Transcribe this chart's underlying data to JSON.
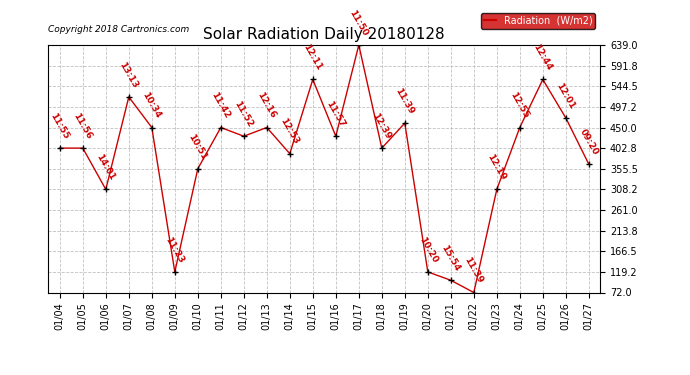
{
  "title": "Solar Radiation Daily 20180128",
  "copyright": "Copyright 2018 Cartronics.com",
  "legend_label": "Radiation  (W/m2)",
  "x_labels": [
    "01/04",
    "01/05",
    "01/06",
    "01/07",
    "01/08",
    "01/09",
    "01/10",
    "01/11",
    "01/12",
    "01/13",
    "01/14",
    "01/15",
    "01/16",
    "01/17",
    "01/18",
    "01/19",
    "01/20",
    "01/21",
    "01/22",
    "01/23",
    "01/24",
    "01/25",
    "01/26",
    "01/27"
  ],
  "y_values": [
    402.8,
    402.8,
    308.2,
    520.0,
    450.0,
    119.2,
    355.5,
    450.0,
    430.0,
    450.0,
    390.0,
    560.0,
    430.0,
    639.0,
    402.8,
    460.0,
    119.2,
    100.0,
    72.0,
    308.2,
    450.0,
    560.0,
    472.0,
    366.0
  ],
  "time_labels": [
    "11:55",
    "11:56",
    "14:01",
    "13:13",
    "10:34",
    "11:23",
    "10:51",
    "11:42",
    "11:52",
    "12:16",
    "12:53",
    "12:11",
    "11:57",
    "11:50",
    "12:39",
    "11:39",
    "10:20",
    "15:54",
    "11:39",
    "12:19",
    "12:55",
    "12:44",
    "12:01",
    "09:20"
  ],
  "ylim_min": 72.0,
  "ylim_max": 639.0,
  "yticks": [
    72.0,
    119.2,
    166.5,
    213.8,
    261.0,
    308.2,
    355.5,
    402.8,
    450.0,
    497.2,
    544.5,
    591.8,
    639.0
  ],
  "line_color": "#cc0000",
  "marker_color": "#000000",
  "background_color": "#ffffff",
  "grid_color": "#bbbbbb",
  "title_fontsize": 11,
  "tick_fontsize": 7,
  "legend_bg": "#cc0000",
  "legend_text_color": "#ffffff",
  "label_rotation": -60,
  "label_fontsize": 6.5
}
